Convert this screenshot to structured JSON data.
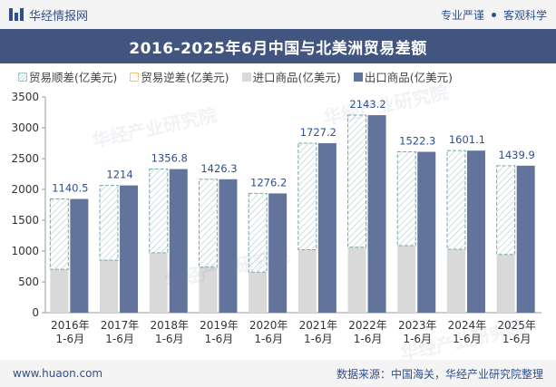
{
  "header": {
    "brand": "华经情报网",
    "slogan_1": "专业严谨",
    "slogan_2": "客观科学"
  },
  "title": "2016-2025年6月中国与北美洲贸易差额",
  "legend": {
    "surplus": "贸易顺差(亿美元)",
    "deficit": "贸易逆差(亿美元)",
    "import": "进口商品(亿美元)",
    "export": "出口商品(亿美元)"
  },
  "footer": {
    "website": "www.huaon.com",
    "source": "数据来源：中国海关，华经产业研究院整理"
  },
  "watermark": "华经产业研究院",
  "colors": {
    "export": "#62739c",
    "import": "#d9d9d9",
    "surplus_stroke": "#7aa7aa",
    "label": "#2f4f8f"
  },
  "chart_data": {
    "type": "bar",
    "categories": [
      "2016年\n1-6月",
      "2017年\n1-6月",
      "2018年\n1-6月",
      "2019年\n1-6月",
      "2020年\n1-6月",
      "2021年\n1-6月",
      "2022年\n1-6月",
      "2023年\n1-6月",
      "2024年\n1-6月",
      "2025年\n1-6月"
    ],
    "series": [
      {
        "name": "出口商品(亿美元)",
        "values": [
          1845,
          2065,
          2330,
          2165,
          1935,
          2750,
          3205,
          2610,
          2630,
          2385
        ]
      },
      {
        "name": "进口商品(亿美元)",
        "values": [
          705,
          851,
          973,
          739,
          659,
          1023,
          1062,
          1088,
          1029,
          945
        ]
      },
      {
        "name": "贸易顺差(亿美元)",
        "values": [
          1140.5,
          1214,
          1356.8,
          1426.3,
          1276.2,
          1727.2,
          2143.2,
          1522.3,
          1601.1,
          1439.9
        ]
      }
    ],
    "ylim": [
      0,
      3500
    ],
    "yticks": [
      0,
      500,
      1000,
      1500,
      2000,
      2500,
      3000,
      3500
    ],
    "grid": false,
    "legend_position": "top"
  }
}
